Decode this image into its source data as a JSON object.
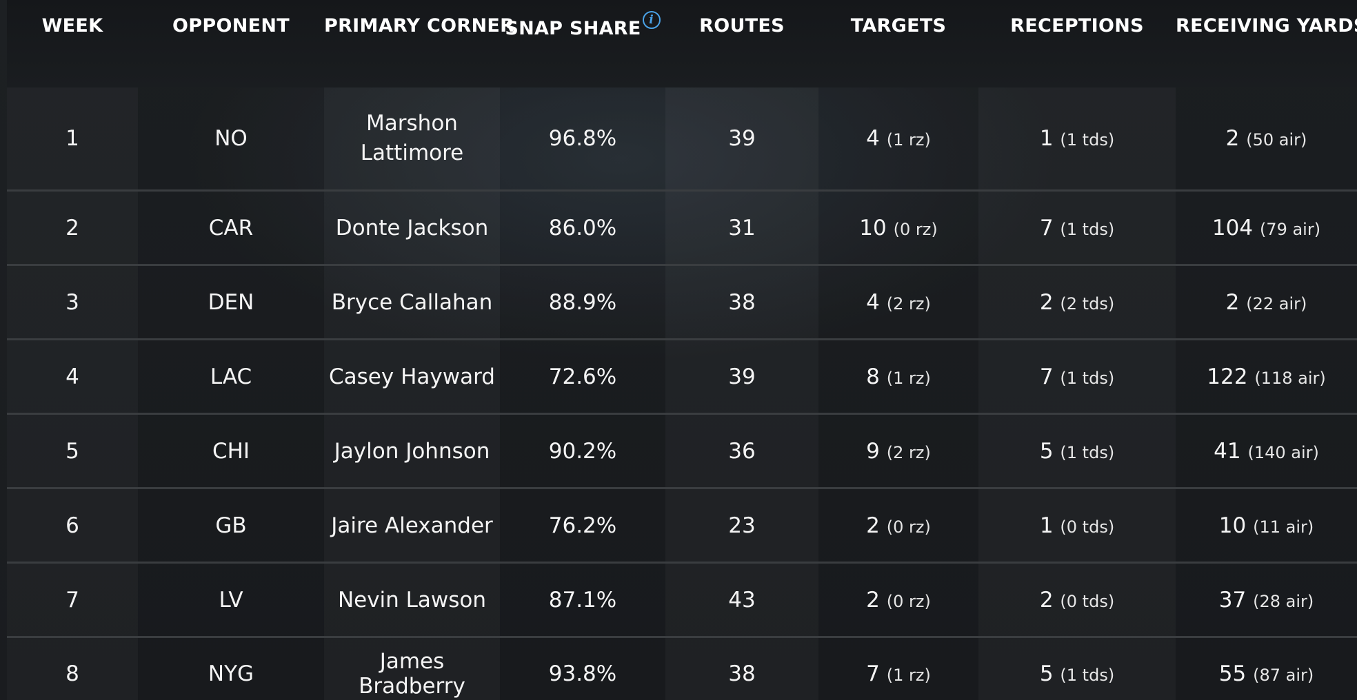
{
  "headers": {
    "week": "WEEK",
    "opponent": "OPPONENT",
    "primary_corner": "PRIMARY CORNER",
    "snap_share": "SNAP SHARE",
    "routes": "ROUTES",
    "targets": "TARGETS",
    "receptions": "RECEPTIONS",
    "receiving_yards": "RECEIVING YARDS"
  },
  "info_icon": "i",
  "rows": [
    {
      "week": "1",
      "opponent": "NO",
      "corner": "Marshon Lattimore",
      "snap": "96.8%",
      "routes": "39",
      "targets": "4",
      "targets_sub": "(1 rz)",
      "rec": "1",
      "rec_sub": "(1 tds)",
      "yds": "2",
      "yds_sub": "(50 air)"
    },
    {
      "week": "2",
      "opponent": "CAR",
      "corner": "Donte Jackson",
      "snap": "86.0%",
      "routes": "31",
      "targets": "10",
      "targets_sub": "(0 rz)",
      "rec": "7",
      "rec_sub": "(1 tds)",
      "yds": "104",
      "yds_sub": "(79 air)"
    },
    {
      "week": "3",
      "opponent": "DEN",
      "corner": "Bryce Callahan",
      "snap": "88.9%",
      "routes": "38",
      "targets": "4",
      "targets_sub": "(2 rz)",
      "rec": "2",
      "rec_sub": "(2 tds)",
      "yds": "2",
      "yds_sub": "(22 air)"
    },
    {
      "week": "4",
      "opponent": "LAC",
      "corner": "Casey Hayward",
      "snap": "72.6%",
      "routes": "39",
      "targets": "8",
      "targets_sub": "(1 rz)",
      "rec": "7",
      "rec_sub": "(1 tds)",
      "yds": "122",
      "yds_sub": "(118 air)"
    },
    {
      "week": "5",
      "opponent": "CHI",
      "corner": "Jaylon Johnson",
      "snap": "90.2%",
      "routes": "36",
      "targets": "9",
      "targets_sub": "(2 rz)",
      "rec": "5",
      "rec_sub": "(1 tds)",
      "yds": "41",
      "yds_sub": "(140 air)"
    },
    {
      "week": "6",
      "opponent": "GB",
      "corner": "Jaire Alexander",
      "snap": "76.2%",
      "routes": "23",
      "targets": "2",
      "targets_sub": "(0 rz)",
      "rec": "1",
      "rec_sub": "(0 tds)",
      "yds": "10",
      "yds_sub": "(11 air)"
    },
    {
      "week": "7",
      "opponent": "LV",
      "corner": "Nevin Lawson",
      "snap": "87.1%",
      "routes": "43",
      "targets": "2",
      "targets_sub": "(0 rz)",
      "rec": "2",
      "rec_sub": "(0 tds)",
      "yds": "37",
      "yds_sub": "(28 air)"
    },
    {
      "week": "8",
      "opponent": "NYG",
      "corner": "James Bradberry",
      "snap": "93.8%",
      "routes": "38",
      "targets": "7",
      "targets_sub": "(1 rz)",
      "rec": "5",
      "rec_sub": "(1 tds)",
      "yds": "55",
      "yds_sub": "(87 air)"
    }
  ]
}
